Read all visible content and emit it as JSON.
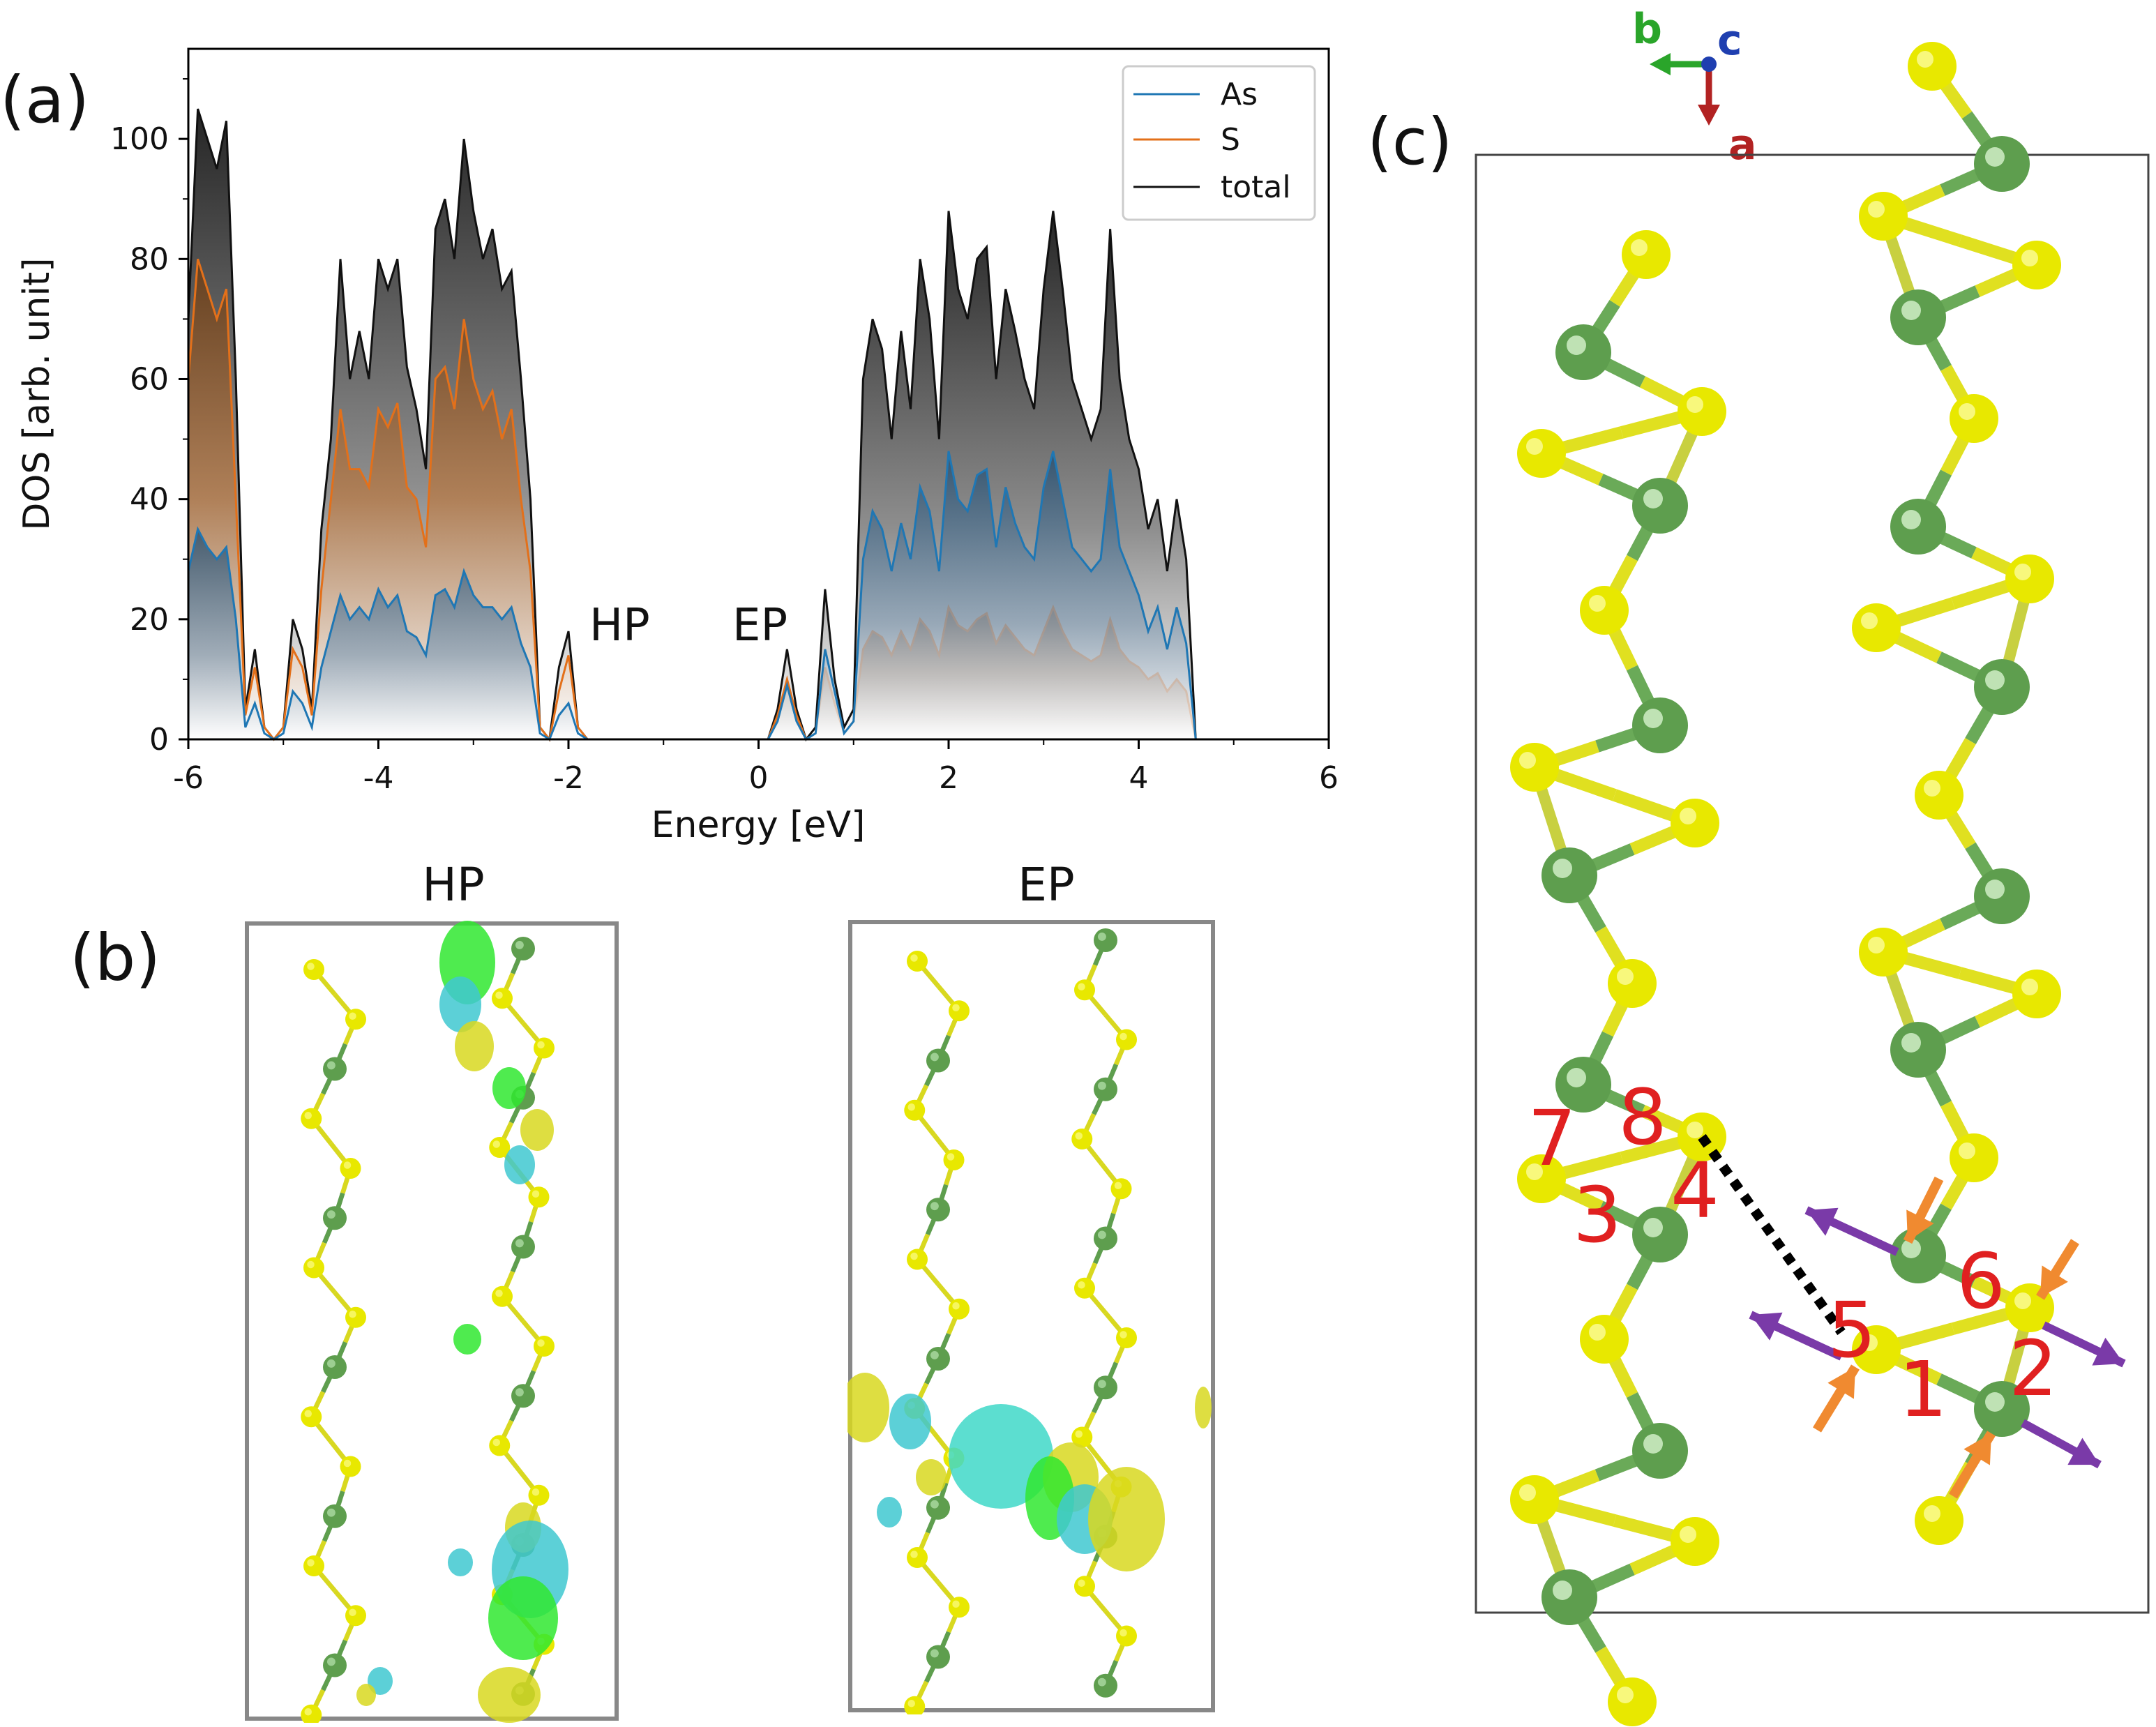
{
  "panels": {
    "a": {
      "label": "(a)"
    },
    "b": {
      "label": "(b)",
      "titles": [
        "HP",
        "EP"
      ]
    },
    "c": {
      "label": "(c)"
    }
  },
  "chart_data": {
    "type": "area",
    "xlabel": "Energy [eV]",
    "ylabel": "DOS [arb. unit]",
    "xlim": [
      -6,
      6
    ],
    "ylim": [
      0,
      115
    ],
    "xticks": [
      -6,
      -4,
      -2,
      0,
      2,
      4,
      6
    ],
    "yticks": [
      0,
      20,
      40,
      60,
      80,
      100
    ],
    "legend": {
      "placement": "top-right",
      "entries": [
        "As",
        "S",
        "total"
      ]
    },
    "annotations": [
      {
        "text": "HP",
        "x": -1.7
      },
      {
        "text": "EP",
        "x": 0.15
      }
    ],
    "colors": {
      "As": "#1f77b4",
      "S": "#e3701a",
      "total": "#111111"
    },
    "x": [
      -6.0,
      -5.9,
      -5.8,
      -5.7,
      -5.6,
      -5.5,
      -5.4,
      -5.3,
      -5.2,
      -5.1,
      -5.0,
      -4.9,
      -4.8,
      -4.7,
      -4.6,
      -4.5,
      -4.4,
      -4.3,
      -4.2,
      -4.1,
      -4.0,
      -3.9,
      -3.8,
      -3.7,
      -3.6,
      -3.5,
      -3.4,
      -3.3,
      -3.2,
      -3.1,
      -3.0,
      -2.9,
      -2.8,
      -2.7,
      -2.6,
      -2.5,
      -2.4,
      -2.3,
      -2.2,
      -2.1,
      -2.0,
      -1.9,
      -1.8,
      -1.7,
      -1.6,
      0.1,
      0.2,
      0.3,
      0.4,
      0.5,
      0.6,
      0.7,
      0.8,
      0.9,
      1.0,
      1.1,
      1.2,
      1.3,
      1.4,
      1.5,
      1.6,
      1.7,
      1.8,
      1.9,
      2.0,
      2.1,
      2.2,
      2.3,
      2.4,
      2.5,
      2.6,
      2.7,
      2.8,
      2.9,
      3.0,
      3.1,
      3.2,
      3.3,
      3.4,
      3.5,
      3.6,
      3.7,
      3.8,
      3.9,
      4.0,
      4.1,
      4.2,
      4.3,
      4.4,
      4.5,
      4.6,
      4.7,
      4.8
    ],
    "series": [
      {
        "name": "total",
        "values": [
          70,
          105,
          100,
          95,
          103,
          60,
          5,
          15,
          2,
          0,
          2,
          20,
          15,
          5,
          35,
          50,
          80,
          60,
          68,
          60,
          80,
          75,
          80,
          62,
          55,
          45,
          85,
          90,
          80,
          100,
          88,
          80,
          85,
          75,
          78,
          60,
          40,
          2,
          0,
          12,
          18,
          2,
          0,
          0,
          0,
          0,
          5,
          15,
          5,
          0,
          2,
          25,
          10,
          2,
          5,
          60,
          70,
          65,
          50,
          68,
          55,
          80,
          70,
          50,
          88,
          75,
          70,
          80,
          82,
          60,
          75,
          68,
          60,
          55,
          75,
          88,
          75,
          60,
          55,
          50,
          55,
          85,
          60,
          50,
          45,
          35,
          40,
          28,
          40,
          30,
          0,
          0,
          0
        ]
      },
      {
        "name": "S",
        "values": [
          60,
          80,
          75,
          70,
          75,
          40,
          4,
          12,
          2,
          0,
          2,
          15,
          12,
          4,
          25,
          40,
          55,
          45,
          45,
          42,
          55,
          52,
          56,
          42,
          40,
          32,
          60,
          62,
          55,
          70,
          60,
          55,
          58,
          50,
          55,
          40,
          28,
          2,
          0,
          8,
          14,
          2,
          0,
          0,
          0,
          0,
          4,
          10,
          4,
          0,
          1,
          12,
          6,
          1,
          3,
          15,
          18,
          17,
          14,
          18,
          15,
          20,
          18,
          14,
          22,
          19,
          18,
          20,
          21,
          16,
          19,
          17,
          15,
          14,
          18,
          22,
          18,
          15,
          14,
          13,
          14,
          20,
          15,
          13,
          12,
          10,
          11,
          8,
          10,
          8,
          0,
          0,
          0
        ]
      },
      {
        "name": "As",
        "values": [
          28,
          35,
          32,
          30,
          32,
          20,
          2,
          6,
          1,
          0,
          1,
          8,
          6,
          2,
          12,
          18,
          24,
          20,
          22,
          20,
          25,
          22,
          24,
          18,
          17,
          14,
          24,
          25,
          22,
          28,
          24,
          22,
          22,
          20,
          22,
          16,
          12,
          1,
          0,
          4,
          6,
          1,
          0,
          0,
          0,
          0,
          3,
          9,
          3,
          0,
          1,
          15,
          8,
          1,
          3,
          30,
          38,
          35,
          28,
          36,
          30,
          42,
          38,
          28,
          48,
          40,
          38,
          44,
          45,
          32,
          42,
          36,
          32,
          30,
          42,
          48,
          40,
          32,
          30,
          28,
          30,
          45,
          32,
          28,
          24,
          18,
          22,
          15,
          22,
          16,
          0,
          0,
          0
        ]
      }
    ]
  },
  "structure": {
    "axes": {
      "b": "b",
      "c": "c",
      "a": "a"
    },
    "site_labels": [
      "1",
      "2",
      "3",
      "4",
      "5",
      "6",
      "7",
      "8"
    ]
  }
}
